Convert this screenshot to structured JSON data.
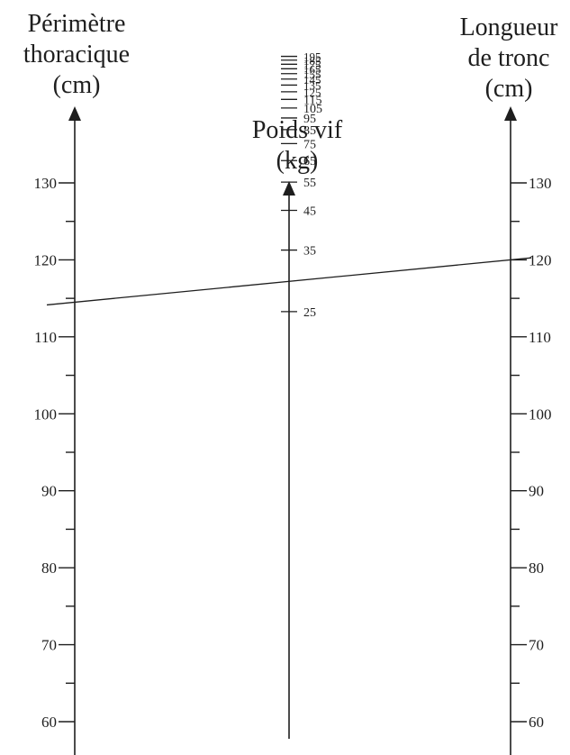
{
  "scales": {
    "left": {
      "title_lines": [
        "Périmètre",
        "thoracique",
        "(cm)"
      ],
      "min": 60,
      "max": 130,
      "minor_step": 5,
      "labels": [
        "130",
        "120",
        "110",
        "100",
        "90",
        "80",
        "70",
        "60"
      ]
    },
    "middle": {
      "title_lines": [
        "Poids vif",
        "(kg)"
      ],
      "labels": [
        "195",
        "185",
        "175",
        "165",
        "155",
        "145",
        "135",
        "125",
        "115",
        "105",
        "95",
        "85",
        "75",
        "65",
        "55",
        "45",
        "35",
        "25"
      ]
    },
    "right": {
      "title_lines": [
        "Longueur",
        "de tronc",
        "(cm)"
      ],
      "min": 60,
      "max": 130,
      "minor_step": 5,
      "labels": [
        "130",
        "120",
        "110",
        "100",
        "90",
        "80",
        "70",
        "60"
      ]
    }
  },
  "reading_line": {
    "from": {
      "scale": "left",
      "value": 114.5
    },
    "to": {
      "scale": "right",
      "value": 120
    }
  },
  "colors": {
    "ink": "#1e1e1e",
    "background": "#ffffff"
  }
}
